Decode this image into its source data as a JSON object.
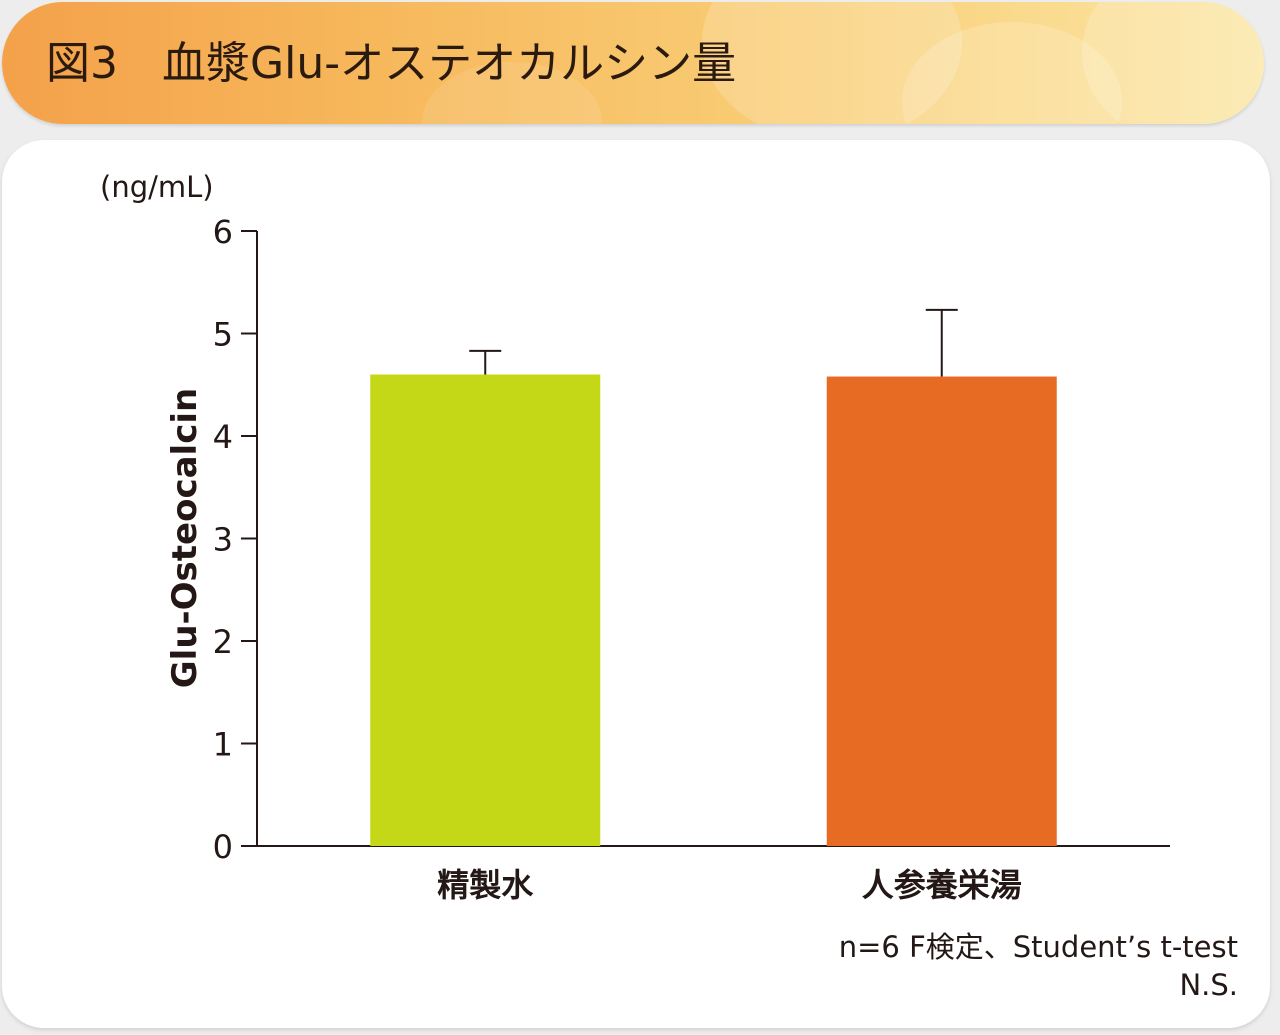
{
  "header": {
    "title": "図3　血漿Glu-オステオカルシン量"
  },
  "notes": {
    "test": "n=6 F検定、Student’s t-test",
    "result": "N.S."
  },
  "colors": {
    "header_start": "#f4a14a",
    "header_end": "#fbe7a6",
    "bar_water": "#c5d817",
    "bar_ninjin": "#e86b24",
    "axis": "#231815"
  },
  "chart_data": {
    "type": "bar",
    "title": "",
    "unit": "(ng/mL)",
    "ylabel": "Glu-Osteocalcin",
    "xlabel": "",
    "ylim": [
      0,
      6
    ],
    "yticks": [
      0,
      1,
      2,
      3,
      4,
      5,
      6
    ],
    "categories": [
      "精製水",
      "人参養栄湯"
    ],
    "values": [
      4.6,
      4.58
    ],
    "error_upper": [
      0.23,
      0.65
    ],
    "bar_colors": [
      "#c5d817",
      "#e86b24"
    ],
    "grid": false,
    "legend": "none"
  }
}
